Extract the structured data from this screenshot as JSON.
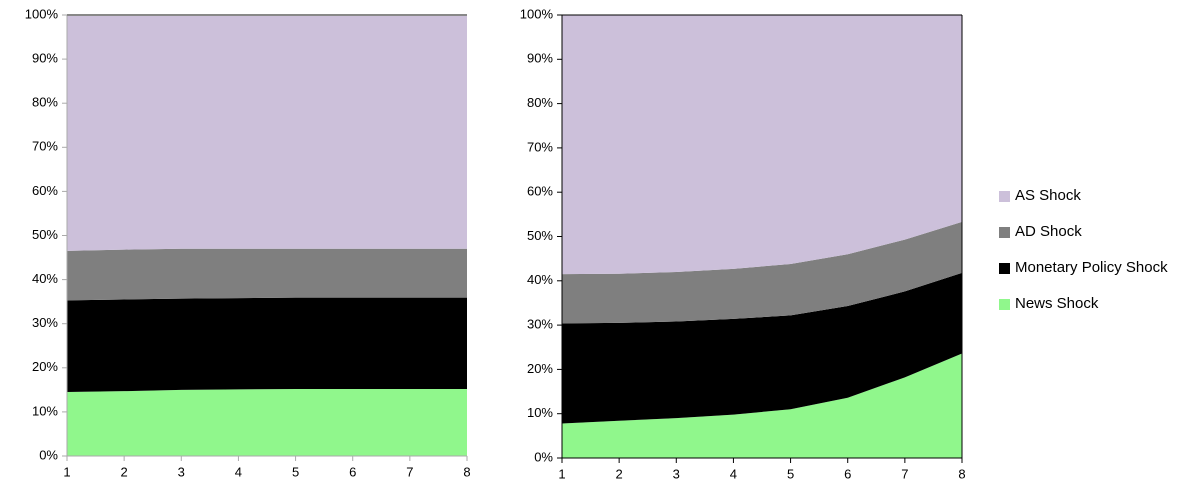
{
  "chart_data": [
    {
      "type": "stacked-area",
      "x": [
        1,
        2,
        3,
        4,
        5,
        6,
        7,
        8
      ],
      "xlim": [
        1,
        8
      ],
      "xticks": [
        1,
        2,
        3,
        4,
        5,
        6,
        7,
        8
      ],
      "ylim": [
        0,
        100
      ],
      "yticks": [
        {
          "value": 0,
          "label": "0%"
        },
        {
          "value": 10,
          "label": "10%"
        },
        {
          "value": 20,
          "label": "20%"
        },
        {
          "value": 30,
          "label": "30%"
        },
        {
          "value": 40,
          "label": "40%"
        },
        {
          "value": 50,
          "label": "50%"
        },
        {
          "value": 60,
          "label": "60%"
        },
        {
          "value": 70,
          "label": "70%"
        },
        {
          "value": 80,
          "label": "80%"
        },
        {
          "value": 90,
          "label": "90%"
        },
        {
          "value": 100,
          "label": "100%"
        }
      ],
      "series": [
        {
          "color": "#90f78c",
          "values": [
            14.5,
            14.7,
            15,
            15.1,
            15.2,
            15.2,
            15.2,
            15.2
          ]
        },
        {
          "color": "#000000",
          "values": [
            20.8,
            20.8,
            20.7,
            20.7,
            20.7,
            20.7,
            20.7,
            20.7
          ]
        },
        {
          "color": "#7f7f7f",
          "values": [
            11.2,
            11.3,
            11.3,
            11.2,
            11.1,
            11.1,
            11.1,
            11.1
          ]
        },
        {
          "color": "#ccc0da",
          "values": [
            53.5,
            53.2,
            53,
            53,
            53,
            53,
            53,
            53
          ]
        }
      ]
    },
    {
      "type": "stacked-area",
      "x": [
        1,
        2,
        3,
        4,
        5,
        6,
        7,
        8
      ],
      "xlim": [
        1,
        8
      ],
      "xticks": [
        1,
        2,
        3,
        4,
        5,
        6,
        7,
        8
      ],
      "ylim": [
        0,
        100
      ],
      "yticks": [
        {
          "value": 0,
          "label": "0%"
        },
        {
          "value": 10,
          "label": "10%"
        },
        {
          "value": 20,
          "label": "20%"
        },
        {
          "value": 30,
          "label": "30%"
        },
        {
          "value": 40,
          "label": "40%"
        },
        {
          "value": 50,
          "label": "50%"
        },
        {
          "value": 60,
          "label": "60%"
        },
        {
          "value": 70,
          "label": "70%"
        },
        {
          "value": 80,
          "label": "80%"
        },
        {
          "value": 90,
          "label": "90%"
        },
        {
          "value": 100,
          "label": "100%"
        }
      ],
      "legend": "right",
      "series": [
        {
          "name": "News Shock",
          "color": "#90f78c",
          "values": [
            7.8,
            8.4,
            9,
            9.8,
            11,
            13.6,
            18.2,
            23.6
          ]
        },
        {
          "name": "Monetary Policy Shock",
          "color": "#000000",
          "values": [
            22.6,
            22.1,
            21.8,
            21.6,
            21.2,
            20.7,
            19.4,
            18.2
          ]
        },
        {
          "name": "AD Shock",
          "color": "#7f7f7f",
          "values": [
            11.1,
            11.1,
            11.2,
            11.3,
            11.6,
            11.7,
            11.7,
            11.5
          ]
        },
        {
          "name": "AS Shock",
          "color": "#ccc0da",
          "values": [
            58.5,
            58.4,
            58,
            57.3,
            56.2,
            54,
            50.7,
            46.7
          ]
        }
      ]
    }
  ]
}
